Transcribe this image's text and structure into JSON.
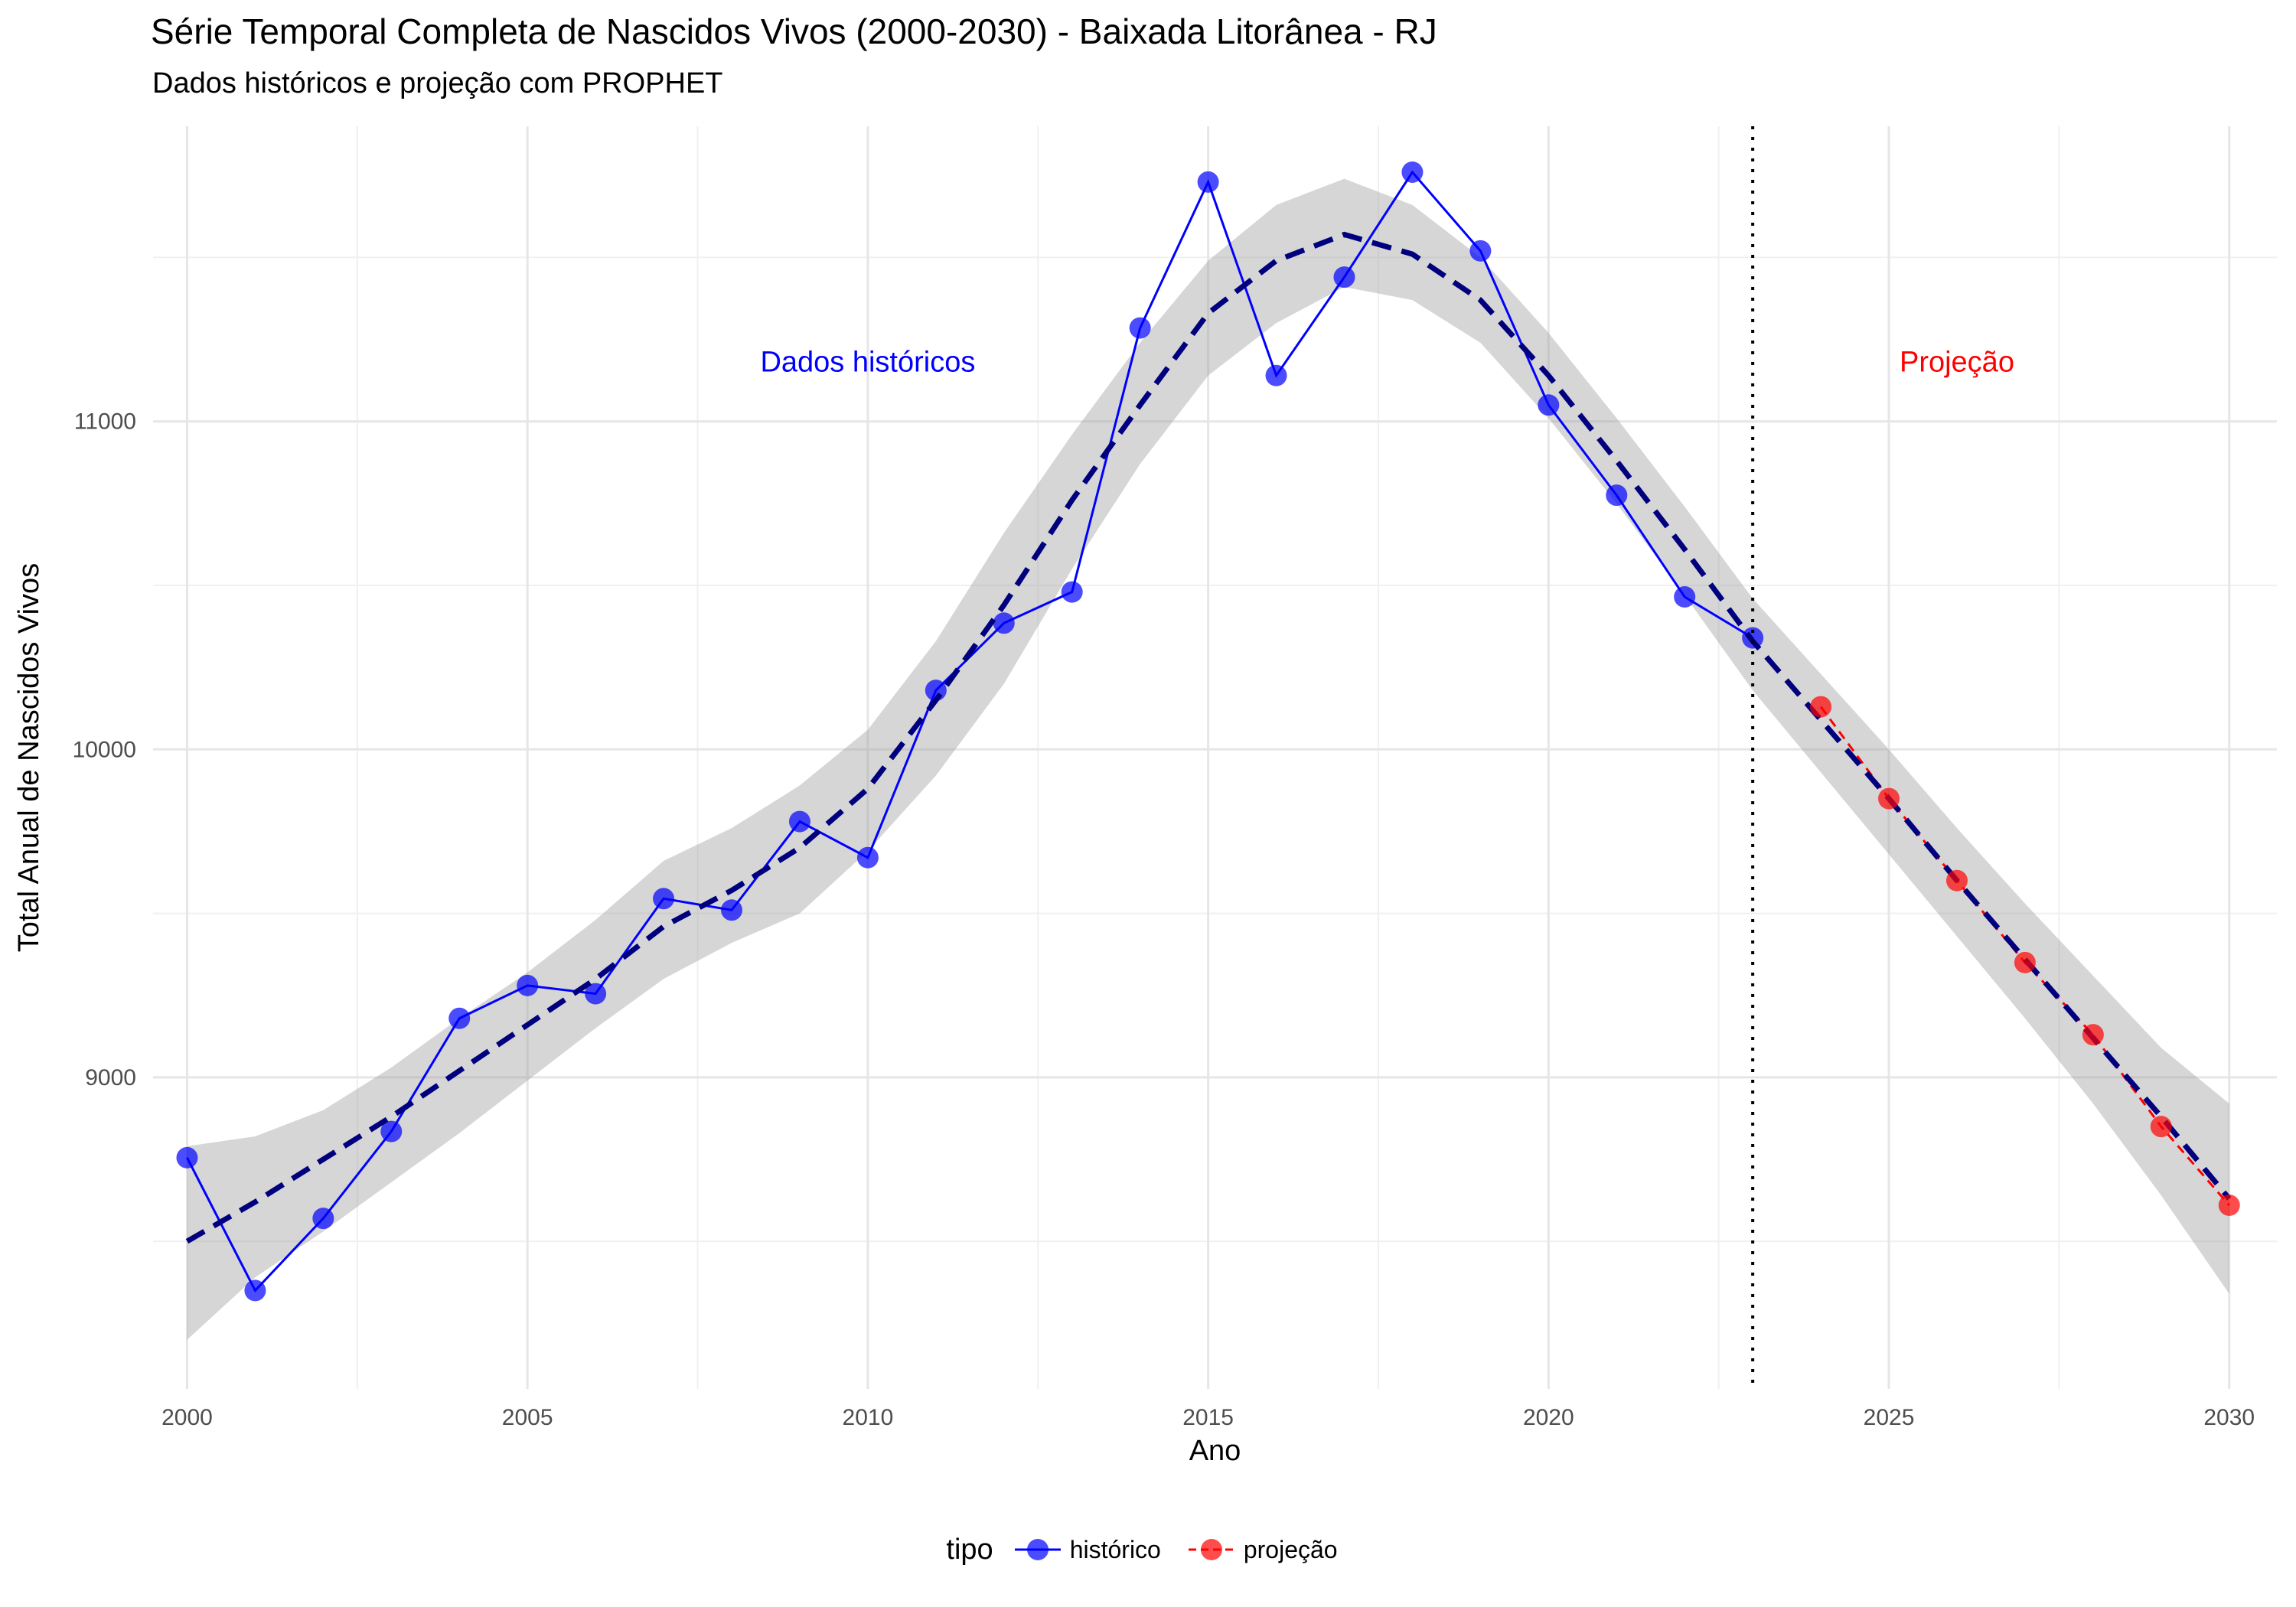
{
  "chart_data": {
    "type": "line",
    "title": "Série Temporal Completa de Nascidos Vivos (2000-2030) -  Baixada Litorânea - RJ",
    "subtitle": "Dados históricos e projeção com PROPHET",
    "xlabel": "Ano",
    "ylabel": "Total Anual de Nascidos Vivos",
    "xlim": [
      1999.5,
      2030.7
    ],
    "ylim": [
      8050,
      11900
    ],
    "x_ticks": [
      2000,
      2005,
      2010,
      2015,
      2020,
      2025,
      2030
    ],
    "y_ticks": [
      9000,
      10000,
      11000
    ],
    "grid": true,
    "legend_position": "bottom",
    "legend_title": "tipo",
    "vline_x": 2023,
    "annotations": [
      {
        "text": "Dados históricos",
        "x": 2010,
        "y": 11180,
        "color": "#0000ff"
      },
      {
        "text": "Projeção",
        "x": 2026,
        "y": 11180,
        "color": "#ff0000"
      }
    ],
    "series": [
      {
        "name": "histórico",
        "color": "#0000ff",
        "x": [
          2000,
          2001,
          2002,
          2003,
          2004,
          2005,
          2006,
          2007,
          2008,
          2009,
          2010,
          2011,
          2012,
          2013,
          2014,
          2015,
          2016,
          2017,
          2018,
          2019,
          2020,
          2021,
          2022,
          2023
        ],
        "values": [
          8755,
          8350,
          8570,
          8835,
          9180,
          9280,
          9255,
          9545,
          9510,
          9780,
          9670,
          10180,
          10385,
          10480,
          11285,
          11730,
          11140,
          11440,
          11760,
          11520,
          11050,
          10775,
          10465,
          10340
        ]
      },
      {
        "name": "projeção",
        "color": "#ff0000",
        "x": [
          2024,
          2025,
          2026,
          2027,
          2028,
          2029,
          2030
        ],
        "values": [
          10130,
          9850,
          9600,
          9350,
          9130,
          8850,
          8610
        ]
      }
    ],
    "trend": {
      "color": "#00007f",
      "x": [
        2000,
        2001,
        2002,
        2003,
        2004,
        2005,
        2006,
        2007,
        2008,
        2009,
        2010,
        2011,
        2012,
        2013,
        2014,
        2015,
        2016,
        2017,
        2018,
        2019,
        2020,
        2021,
        2022,
        2023,
        2024,
        2025,
        2026,
        2027,
        2028,
        2029,
        2030
      ],
      "values": [
        8500,
        8620,
        8750,
        8880,
        9020,
        9160,
        9300,
        9460,
        9570,
        9700,
        9880,
        10150,
        10440,
        10760,
        11050,
        11330,
        11490,
        11570,
        11510,
        11370,
        11140,
        10880,
        10610,
        10330,
        10090,
        9850,
        9600,
        9360,
        9120,
        8880,
        8630
      ],
      "lower": [
        8200,
        8390,
        8530,
        8680,
        8830,
        8990,
        9150,
        9300,
        9410,
        9500,
        9690,
        9920,
        10200,
        10550,
        10870,
        11140,
        11300,
        11410,
        11370,
        11240,
        11010,
        10750,
        10470,
        10180,
        9930,
        9680,
        9430,
        9180,
        8920,
        8640,
        8340
      ],
      "upper": [
        8790,
        8820,
        8900,
        9030,
        9180,
        9320,
        9480,
        9660,
        9760,
        9890,
        10060,
        10330,
        10660,
        10960,
        11240,
        11490,
        11660,
        11740,
        11660,
        11500,
        11270,
        11010,
        10740,
        10460,
        10230,
        10000,
        9760,
        9530,
        9310,
        9090,
        8920
      ]
    }
  }
}
